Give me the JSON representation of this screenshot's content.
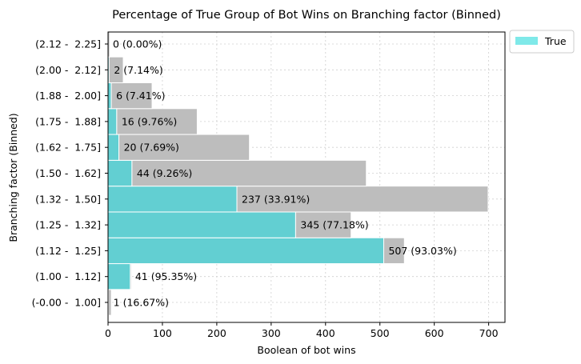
{
  "chart_data": {
    "type": "bar",
    "orientation": "horizontal",
    "stacked": true,
    "title": "Percentage of True Group of Bot Wins on Branching factor (Binned)",
    "xlabel": "Boolean of bot wins",
    "ylabel": "Branching factor (Binned)",
    "xlim": [
      0,
      730
    ],
    "xticks": [
      0,
      100,
      200,
      300,
      400,
      500,
      600,
      700
    ],
    "grid": true,
    "legend": {
      "position": "outside-top-right",
      "entries": [
        {
          "label": "True",
          "color": "#7fe9e9"
        }
      ]
    },
    "colors": {
      "true": "#62cfd2",
      "total": "#bdbdbd",
      "legend_true": "#7fe9e9"
    },
    "categories": [
      "(-0.00 -  1.00]",
      "(1.00 -  1.12]",
      "(1.12 -  1.25]",
      "(1.25 -  1.32]",
      "(1.32 -  1.50]",
      "(1.50 -  1.62]",
      "(1.62 -  1.75]",
      "(1.75 -  1.88]",
      "(1.88 -  2.00]",
      "(2.00 -  2.12]",
      "(2.12 -  2.25]"
    ],
    "series": [
      {
        "name": "True",
        "values": [
          1,
          41,
          507,
          345,
          237,
          44,
          20,
          16,
          6,
          2,
          0
        ]
      },
      {
        "name": "Total",
        "values": [
          6,
          43,
          545,
          447,
          699,
          475,
          260,
          164,
          81,
          28,
          3
        ]
      }
    ],
    "data_labels": [
      "1 (16.67%)",
      "41 (95.35%)",
      "507 (93.03%)",
      "345 (77.18%)",
      "237 (33.91%)",
      "44 (9.26%)",
      "20 (7.69%)",
      "16 (9.76%)",
      "6 (7.41%)",
      "2 (7.14%)",
      "0 (0.00%)"
    ]
  }
}
